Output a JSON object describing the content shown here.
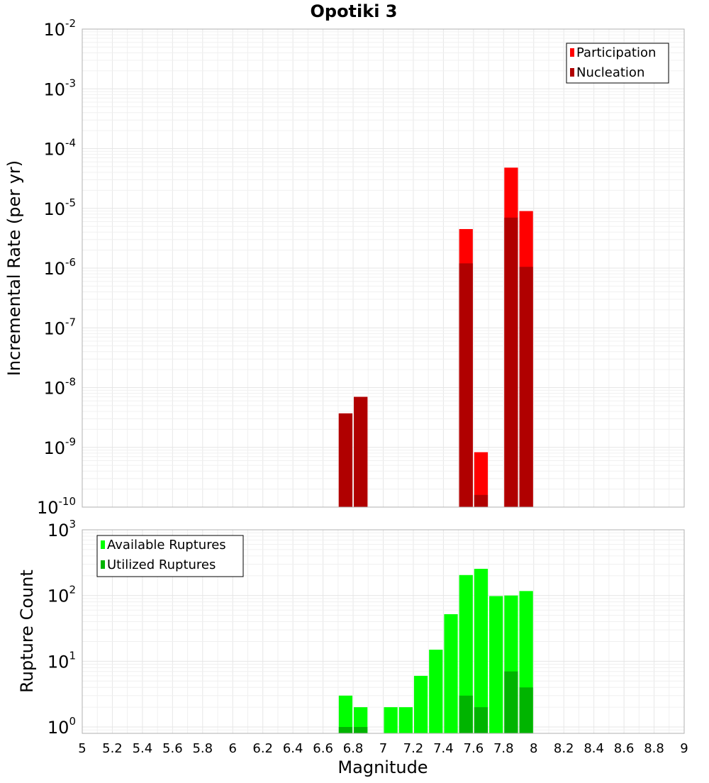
{
  "chart_data": {
    "title": "Opotiki 3",
    "xlabel": "Magnitude",
    "x_ticks": [
      "5",
      "5.2",
      "5.4",
      "5.6",
      "5.8",
      "6",
      "6.2",
      "6.4",
      "6.6",
      "6.8",
      "7",
      "7.2",
      "7.4",
      "7.6",
      "7.8",
      "8",
      "8.2",
      "8.4",
      "8.6",
      "8.8",
      "9"
    ],
    "xlim": [
      5,
      9
    ],
    "bin_width": 0.1,
    "panels": [
      {
        "type": "bar",
        "ylabel": "Incremental Rate (per yr)",
        "yscale": "log",
        "ylim": [
          1e-10,
          0.01
        ],
        "ytick_exponents": [
          "-2",
          "-3",
          "-4",
          "-5",
          "-6",
          "-7",
          "-8",
          "-9",
          "-10"
        ],
        "ytick_base": "10",
        "legend": {
          "position": "top-right"
        },
        "series": [
          {
            "name": "Participation",
            "color": "#ff0000",
            "x": [
              6.75,
              6.85,
              7.55,
              7.65,
              7.85,
              7.95
            ],
            "values": [
              3.7e-09,
              7e-09,
              4.5e-06,
              8.3e-10,
              4.8e-05,
              9e-06
            ]
          },
          {
            "name": "Nucleation",
            "color": "#b00000",
            "x": [
              6.75,
              6.85,
              7.55,
              7.65,
              7.85,
              7.95
            ],
            "values": [
              3.7e-09,
              7e-09,
              1.2e-06,
              1.6e-10,
              7e-06,
              1.05e-06
            ]
          }
        ]
      },
      {
        "type": "bar",
        "ylabel": "Rupture Count",
        "yscale": "log",
        "ylim": [
          0.8,
          1000
        ],
        "ytick_exponents": [
          "3",
          "2",
          "1",
          "0"
        ],
        "ytick_base": "10",
        "legend": {
          "position": "top-left"
        },
        "series": [
          {
            "name": "Available Ruptures",
            "color": "#00ff00",
            "x": [
              6.75,
              6.85,
              7.05,
              7.15,
              7.25,
              7.35,
              7.45,
              7.55,
              7.65,
              7.75,
              7.85,
              7.95
            ],
            "values": [
              3,
              2,
              2,
              2,
              6,
              15,
              52,
              205,
              255,
              98,
              100,
              117
            ]
          },
          {
            "name": "Utilized Ruptures",
            "color": "#00b400",
            "x": [
              6.75,
              6.85,
              7.55,
              7.65,
              7.85,
              7.95
            ],
            "values": [
              1,
              1,
              3,
              2,
              7,
              4
            ]
          }
        ]
      }
    ]
  }
}
